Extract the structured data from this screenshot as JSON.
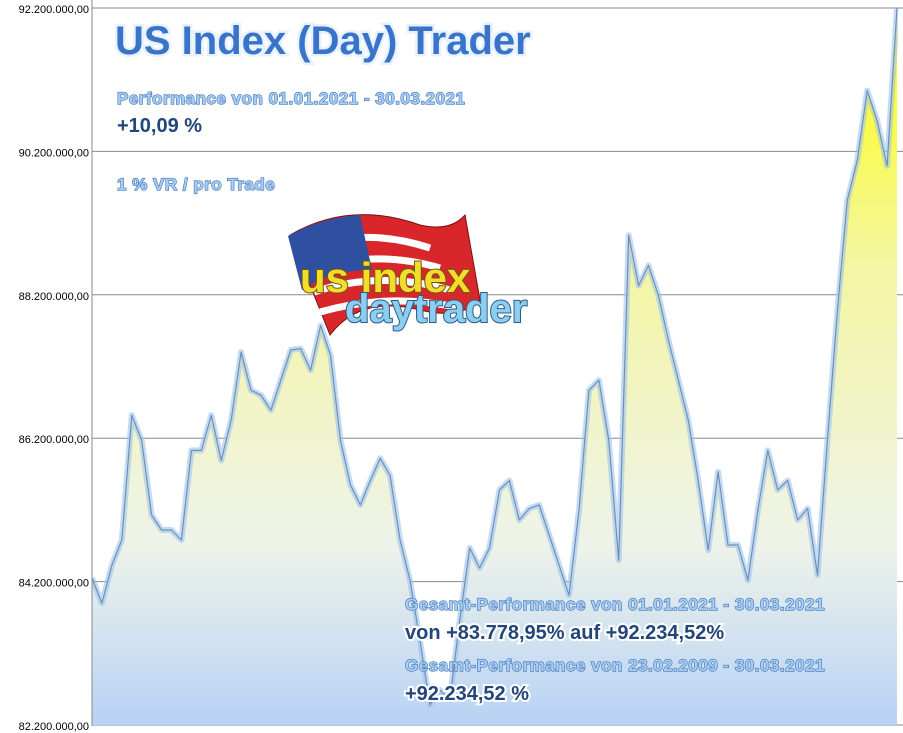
{
  "chart_data": {
    "type": "area",
    "title": "US Index (Day) Trader",
    "annotations": [
      "Performance  von  01.01.2021 - 30.03.2021",
      "+10,09 %",
      "1 % VR / pro Trade",
      "Gesamt-Performance  von  01.01.2021 - 30.03.2021",
      "von +83.778,95% auf  +92.234,52%",
      "Gesamt-Performance  von  23.02.2009 - 30.03.2021",
      "+92.234,52 %"
    ],
    "logo": [
      "us index",
      "daytrader"
    ],
    "values": [
      84250000,
      83900000,
      84430000,
      84780000,
      86520000,
      86170000,
      85130000,
      84920000,
      84920000,
      84780000,
      86030000,
      86030000,
      86520000,
      85890000,
      86450000,
      87400000,
      86870000,
      86800000,
      86590000,
      87010000,
      87430000,
      87450000,
      87150000,
      87770000,
      87360000,
      86170000,
      85550000,
      85270000,
      85610000,
      85920000,
      85680000,
      84780000,
      84220000,
      83380000,
      82480000,
      82690000,
      82550000,
      83660000,
      84670000,
      84390000,
      84670000,
      85480000,
      85610000,
      85060000,
      85220000,
      85270000,
      84850000,
      84430000,
      84010000,
      85200000,
      86870000,
      87010000,
      86170000,
      84500000,
      89030000,
      88330000,
      88610000,
      88190000,
      87570000,
      87010000,
      86450000,
      85610000,
      84640000,
      85730000,
      84710000,
      84710000,
      84220000,
      85200000,
      86030000,
      85480000,
      85610000,
      85060000,
      85220000,
      84290000,
      86170000,
      87980000,
      89520000,
      90070000,
      91050000,
      90630000,
      90000000,
      92200000
    ],
    "color": "#9cc3ec",
    "ylim": [
      82200000,
      92200000
    ],
    "yticks": [
      {
        "value": 82200000,
        "label": "82.200.000,00"
      },
      {
        "value": 84200000,
        "label": "84.200.000,00"
      },
      {
        "value": 86200000,
        "label": "86.200.000,00"
      },
      {
        "value": 88200000,
        "label": "88.200.000,00"
      },
      {
        "value": 90200000,
        "label": "90.200.000,00"
      },
      {
        "value": 92200000,
        "label": "92.200.000,00"
      }
    ],
    "grid": true
  }
}
